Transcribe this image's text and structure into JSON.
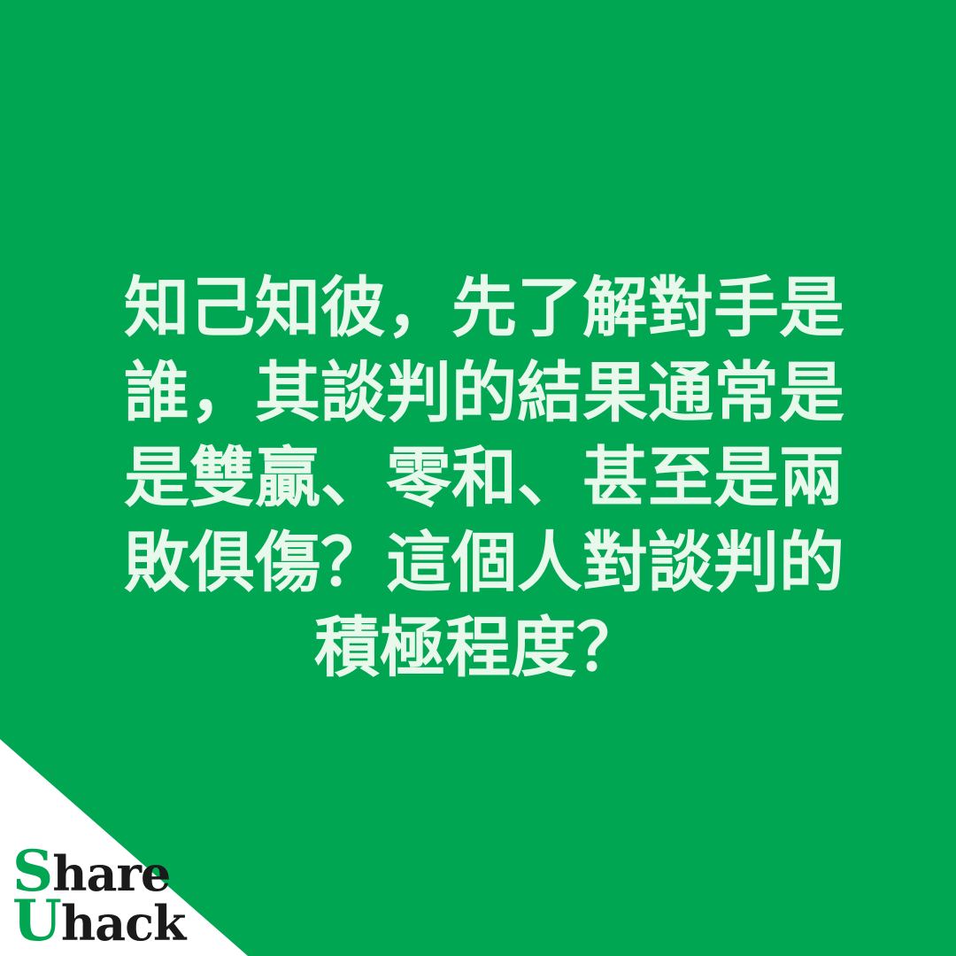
{
  "background_color": "#00a651",
  "text_color": "#e8f8ea",
  "quote": {
    "lines": [
      "知己知彼，先了解對手是",
      "誰，其談判的結果通常是",
      "是雙贏、零和、甚至是兩",
      "敗俱傷？這個人對談判的",
      "積極程度？"
    ]
  },
  "logo": {
    "line1_cap": "S",
    "line1_rest": "hare",
    "line2_cap": "U",
    "line2_rest": "hack",
    "cap_color": "#00a651",
    "text_color": "#1a1a1a"
  }
}
